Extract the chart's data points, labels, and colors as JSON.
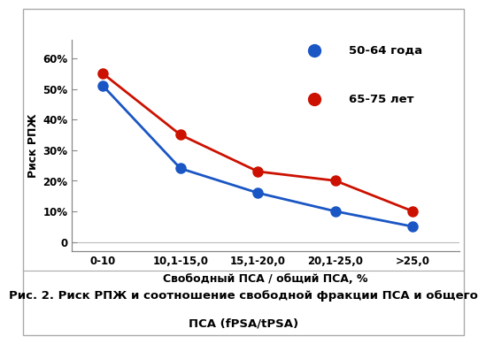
{
  "x_labels": [
    "0-10",
    "10,1-15,0",
    "15,1-20,0",
    "20,1-25,0",
    ">25,0"
  ],
  "x_positions": [
    0,
    1,
    2,
    3,
    4
  ],
  "blue_values": [
    51,
    24,
    16,
    10,
    5
  ],
  "red_values": [
    55,
    35,
    23,
    20,
    10
  ],
  "blue_color": "#1a56c4",
  "red_color": "#cc1100",
  "blue_label": "50-64 года",
  "red_label": "65-75 лет",
  "ylabel": "Риск РПЖ",
  "xlabel": "Свободный ПСА / общий ПСА, %",
  "yticks": [
    0,
    10,
    20,
    30,
    40,
    50,
    60
  ],
  "ytick_labels": [
    "0",
    "10%",
    "20%",
    "30%",
    "40%",
    "50%",
    "60%"
  ],
  "ylim": [
    -3,
    66
  ],
  "xlim": [
    -0.4,
    4.6
  ],
  "caption_line1": "Рис. 2. Риск РПЖ и соотношение свободной фракции ПСА и общего",
  "caption_line2": "ПСА (fPSA/tPSA)",
  "bg_color": "#ffffff",
  "marker_size": 8,
  "line_width": 2.0,
  "border_color": "#aaaaaa",
  "caption_fontsize": 9.5,
  "axis_fontsize": 8.5,
  "label_fontsize": 9.0,
  "legend_fontsize": 9.5
}
